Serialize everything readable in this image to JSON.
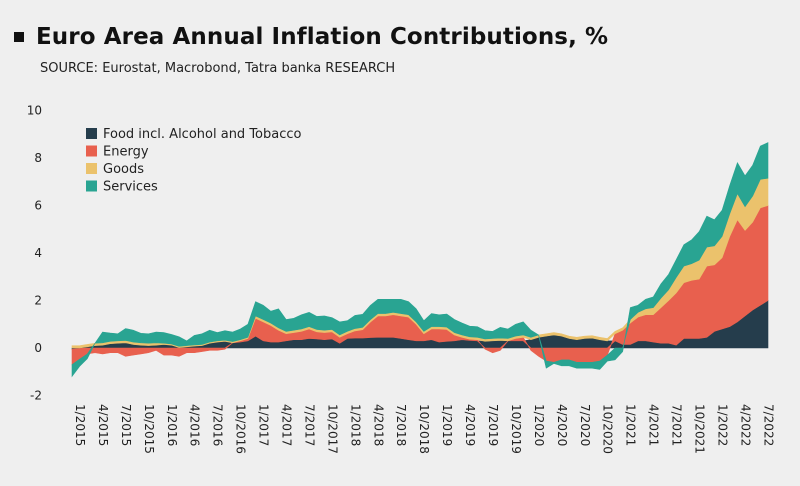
{
  "header": {
    "title": "Euro Area Annual Inflation Contributions, %",
    "subtitle": "SOURCE:  Eurostat, Macrobond, Tatra banka RESEARCH"
  },
  "colors": {
    "food": "#253d4c",
    "energy": "#e8604e",
    "goods": "#ebc26c",
    "services": "#29a492",
    "background": "#efefef"
  },
  "chart_data": {
    "type": "area",
    "title": "Euro Area Annual Inflation Contributions, %",
    "stacked": true,
    "ylim": [
      -2,
      10
    ],
    "y_ticks": [
      -2,
      0,
      2,
      4,
      6,
      8,
      10
    ],
    "x_tick_labels": [
      "1/2015",
      "4/2015",
      "7/2015",
      "10/2015",
      "1/2016",
      "4/2016",
      "7/2016",
      "10/2016",
      "1/2017",
      "4/2017",
      "7/2017",
      "10/2017",
      "1/2018",
      "4/2018",
      "7/2018",
      "10/2018",
      "1/2019",
      "4/2019",
      "7/2019",
      "10/2019",
      "1/2020",
      "4/2020",
      "7/2020",
      "10/2020",
      "1/2021",
      "4/2021",
      "7/2021",
      "10/2021",
      "1/2022",
      "4/2022",
      "7/2022"
    ],
    "legend_position": "top-left",
    "grid": true,
    "x_start": "2015-01",
    "x_end": "2022-08",
    "series": [
      {
        "name": "Food incl. Alcohol and Tobacco",
        "key": "food",
        "values": [
          -0.05,
          -0.02,
          0.05,
          0.1,
          0.12,
          0.18,
          0.2,
          0.22,
          0.15,
          0.12,
          0.1,
          0.12,
          0.15,
          0.12,
          0.02,
          0.05,
          0.08,
          0.1,
          0.2,
          0.25,
          0.28,
          0.22,
          0.25,
          0.3,
          0.5,
          0.3,
          0.25,
          0.25,
          0.3,
          0.35,
          0.35,
          0.4,
          0.38,
          0.35,
          0.38,
          0.2,
          0.4,
          0.42,
          0.42,
          0.44,
          0.45,
          0.45,
          0.45,
          0.4,
          0.35,
          0.3,
          0.3,
          0.35,
          0.25,
          0.28,
          0.3,
          0.35,
          0.32,
          0.3,
          0.28,
          0.3,
          0.32,
          0.3,
          0.3,
          0.3,
          0.35,
          0.45,
          0.5,
          0.55,
          0.5,
          0.4,
          0.35,
          0.4,
          0.42,
          0.35,
          0.3,
          0.3,
          0.15,
          0.15,
          0.3,
          0.3,
          0.25,
          0.2,
          0.2,
          0.12,
          0.4,
          0.4,
          0.4,
          0.45,
          0.7,
          0.8,
          0.9,
          1.1,
          1.35,
          1.6,
          1.8,
          2.0
        ]
      },
      {
        "name": "Energy",
        "key": "energy",
        "values": [
          -0.65,
          -0.45,
          -0.25,
          -0.2,
          -0.25,
          -0.2,
          -0.2,
          -0.35,
          -0.3,
          -0.25,
          -0.2,
          -0.1,
          -0.3,
          -0.3,
          -0.35,
          -0.2,
          -0.2,
          -0.15,
          -0.1,
          -0.1,
          -0.05,
          0.0,
          0.05,
          0.1,
          0.75,
          0.8,
          0.7,
          0.5,
          0.3,
          0.3,
          0.35,
          0.4,
          0.3,
          0.3,
          0.3,
          0.25,
          0.2,
          0.3,
          0.35,
          0.65,
          0.9,
          0.9,
          0.95,
          0.95,
          0.95,
          0.7,
          0.3,
          0.45,
          0.55,
          0.5,
          0.25,
          0.1,
          0.05,
          0.05,
          -0.05,
          -0.2,
          -0.1,
          0.0,
          0.1,
          0.15,
          -0.1,
          -0.35,
          -0.55,
          -0.6,
          -0.5,
          -0.5,
          -0.6,
          -0.6,
          -0.6,
          -0.55,
          -0.3,
          0.3,
          0.6,
          0.9,
          1.0,
          1.1,
          1.15,
          1.5,
          1.8,
          2.2,
          2.35,
          2.45,
          2.5,
          3.0,
          2.8,
          3.0,
          3.8,
          4.3,
          3.6,
          3.7,
          4.1,
          4.0
        ]
      },
      {
        "name": "Goods",
        "key": "goods",
        "values": [
          0.1,
          0.1,
          0.1,
          0.1,
          0.1,
          0.1,
          0.1,
          0.1,
          0.1,
          0.1,
          0.1,
          0.1,
          0.05,
          0.05,
          0.05,
          0.05,
          0.05,
          0.05,
          0.05,
          0.05,
          0.05,
          0.05,
          0.05,
          0.05,
          0.1,
          0.1,
          0.1,
          0.1,
          0.1,
          0.1,
          0.1,
          0.1,
          0.1,
          0.1,
          0.1,
          0.1,
          0.1,
          0.1,
          0.1,
          0.1,
          0.1,
          0.1,
          0.1,
          0.1,
          0.1,
          0.1,
          0.1,
          0.1,
          0.1,
          0.1,
          0.1,
          0.1,
          0.1,
          0.1,
          0.1,
          0.1,
          0.1,
          0.1,
          0.1,
          0.1,
          0.1,
          0.1,
          0.1,
          0.1,
          0.1,
          0.1,
          0.1,
          0.1,
          0.1,
          0.1,
          0.1,
          0.1,
          0.1,
          0.15,
          0.2,
          0.25,
          0.3,
          0.4,
          0.45,
          0.65,
          0.7,
          0.7,
          0.8,
          0.8,
          0.8,
          0.9,
          0.95,
          1.1,
          1.0,
          1.1,
          1.2,
          1.15
        ]
      },
      {
        "name": "Services",
        "key": "services",
        "values": [
          -0.5,
          -0.3,
          -0.2,
          0.0,
          0.45,
          0.35,
          0.3,
          0.5,
          0.5,
          0.4,
          0.4,
          0.45,
          0.45,
          0.4,
          0.4,
          0.2,
          0.4,
          0.45,
          0.5,
          0.35,
          0.4,
          0.4,
          0.45,
          0.55,
          0.6,
          0.6,
          0.5,
          0.8,
          0.5,
          0.5,
          0.6,
          0.6,
          0.55,
          0.6,
          0.5,
          0.55,
          0.45,
          0.55,
          0.55,
          0.6,
          0.6,
          0.6,
          0.55,
          0.6,
          0.55,
          0.55,
          0.45,
          0.55,
          0.5,
          0.55,
          0.55,
          0.5,
          0.45,
          0.45,
          0.35,
          0.3,
          0.45,
          0.4,
          0.5,
          0.55,
          0.3,
          0.0,
          -0.3,
          -0.05,
          -0.25,
          -0.25,
          -0.25,
          -0.25,
          -0.25,
          -0.35,
          -0.25,
          -0.5,
          -0.15,
          0.5,
          0.3,
          0.4,
          0.45,
          0.6,
          0.65,
          0.75,
          0.9,
          1.0,
          1.2,
          1.3,
          1.1,
          1.1,
          1.2,
          1.3,
          1.3,
          1.3,
          1.4,
          1.5
        ]
      }
    ]
  }
}
